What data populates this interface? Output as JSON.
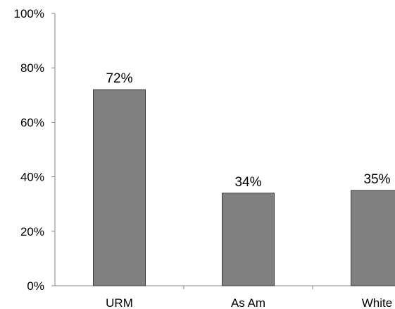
{
  "chart_data": {
    "type": "bar",
    "categories": [
      "URM",
      "As Am",
      "White"
    ],
    "values": [
      72,
      34,
      35
    ],
    "data_labels": [
      "72%",
      "34%",
      "35%"
    ],
    "y_tick_labels": [
      "0%",
      "20%",
      "40%",
      "60%",
      "80%",
      "100%"
    ],
    "y_ticks": [
      0,
      20,
      40,
      60,
      80,
      100
    ],
    "ylim": [
      0,
      100
    ],
    "title": "",
    "xlabel": "",
    "ylabel": "",
    "grid": false,
    "legend": "none",
    "colors": {
      "bar_fill": "#808080",
      "bar_stroke": "#3a3a3a",
      "axis": "#868686"
    }
  }
}
